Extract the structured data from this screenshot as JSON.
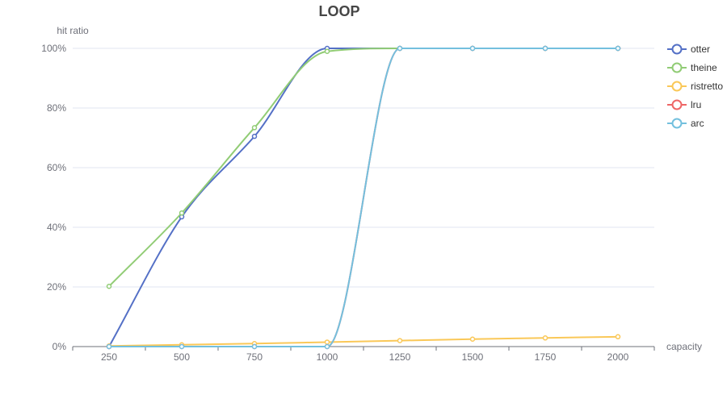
{
  "chart_data": {
    "type": "line",
    "title": "LOOP",
    "xlabel": "capacity",
    "ylabel": "hit ratio",
    "categories": [
      "250",
      "500",
      "750",
      "1000",
      "1250",
      "1500",
      "1750",
      "2000"
    ],
    "ylim": [
      0,
      100
    ],
    "yticks": [
      "0%",
      "20%",
      "40%",
      "60%",
      "80%",
      "100%"
    ],
    "grid": true,
    "legend_position": "right",
    "series": [
      {
        "name": "otter",
        "color": "#5470c6",
        "values": [
          0,
          43.5,
          70.5,
          100,
          100,
          100,
          100,
          100
        ]
      },
      {
        "name": "theine",
        "color": "#91cc75",
        "values": [
          20.2,
          44.8,
          73.4,
          99.0,
          100,
          100,
          100,
          100
        ]
      },
      {
        "name": "ristretto",
        "color": "#fac858",
        "values": [
          0.2,
          0.6,
          1.0,
          1.5,
          2.0,
          2.5,
          2.9,
          3.3
        ]
      },
      {
        "name": "lru",
        "color": "#ee6666",
        "values": [
          0,
          0,
          0,
          0,
          100,
          100,
          100,
          100
        ]
      },
      {
        "name": "arc",
        "color": "#73c0de",
        "values": [
          0,
          0,
          0,
          0,
          100,
          100,
          100,
          100
        ]
      }
    ]
  }
}
